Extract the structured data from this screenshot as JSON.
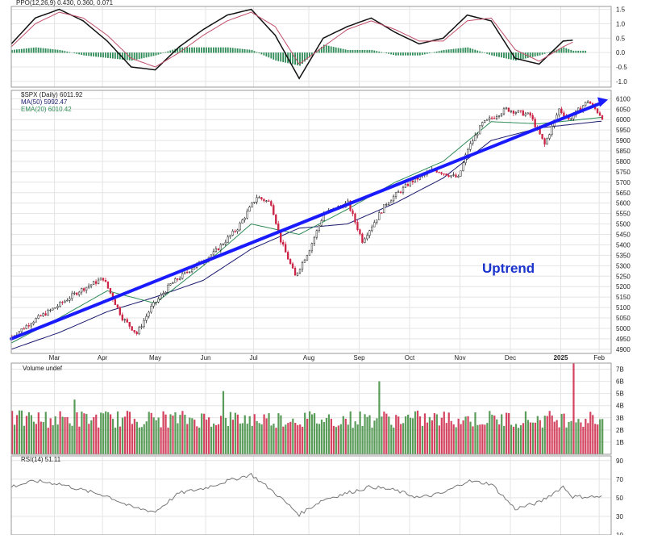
{
  "colors": {
    "up": "#3d8b3d",
    "down": "#cc2244",
    "trend": "#1a1aff",
    "ma50": "#1a1a6e",
    "ema20": "#2e8b57",
    "grid": "#e4e4e4",
    "annotation": "#1a33cc"
  },
  "chart_data": [
    {
      "type": "line",
      "legend": "PPO(12,26,9) 0.430, 0.360, 0.071",
      "ylim": [
        -1.2,
        1.6
      ],
      "yticks": [
        "1.5",
        "1.0",
        "0.5",
        "0.0",
        "-0.5",
        "-1.0"
      ],
      "yticks_values": [
        1.5,
        1.0,
        0.5,
        0.0,
        -0.5,
        -1.0
      ],
      "series": [
        {
          "name": "PPO",
          "x": [
            0,
            10,
            20,
            30,
            40,
            50,
            60,
            70,
            80,
            90,
            100,
            110,
            120,
            130,
            140,
            150,
            160,
            170,
            180,
            190,
            200,
            210,
            220,
            230,
            234
          ],
          "values": [
            0.3,
            1.2,
            1.5,
            1.1,
            0.4,
            -0.5,
            -0.6,
            0.2,
            0.8,
            1.3,
            1.5,
            0.6,
            -0.9,
            0.5,
            0.9,
            1.2,
            0.7,
            0.3,
            0.5,
            1.3,
            1.1,
            -0.2,
            -0.4,
            0.4,
            0.43
          ]
        },
        {
          "name": "Signal",
          "x": [
            0,
            10,
            20,
            30,
            40,
            50,
            60,
            70,
            80,
            90,
            100,
            110,
            120,
            130,
            140,
            150,
            160,
            170,
            180,
            190,
            200,
            210,
            220,
            230,
            234
          ],
          "values": [
            0.2,
            1.0,
            1.4,
            1.2,
            0.6,
            -0.2,
            -0.5,
            0.0,
            0.6,
            1.1,
            1.4,
            0.9,
            -0.4,
            0.2,
            0.8,
            1.1,
            0.8,
            0.4,
            0.4,
            1.1,
            1.2,
            0.1,
            -0.3,
            0.2,
            0.36
          ]
        }
      ]
    },
    {
      "type": "candlestick",
      "legend": [
        "$SPX (Daily) 6011.92",
        "MA(50) 5992.47",
        "EMA(20) 6010.42"
      ],
      "ylim": [
        4880,
        6140
      ],
      "yticks": [
        "6100",
        "6050",
        "6000",
        "5950",
        "5900",
        "5850",
        "5800",
        "5750",
        "5700",
        "5650",
        "5600",
        "5550",
        "5500",
        "5450",
        "5400",
        "5350",
        "5300",
        "5250",
        "5200",
        "5150",
        "5100",
        "5050",
        "5000",
        "4950",
        "4900"
      ],
      "yticks_values": [
        6100,
        6050,
        6000,
        5950,
        5900,
        5850,
        5800,
        5750,
        5700,
        5650,
        5600,
        5550,
        5500,
        5450,
        5400,
        5350,
        5300,
        5250,
        5200,
        5150,
        5100,
        5050,
        5000,
        4950,
        4900
      ],
      "months": [
        "Mar",
        "Apr",
        "May",
        "Jun",
        "Jul",
        "Aug",
        "Sep",
        "Oct",
        "Nov",
        "Dec",
        "2025",
        "Feb"
      ],
      "months_x": [
        18,
        38,
        60,
        81,
        101,
        124,
        145,
        166,
        187,
        208,
        229,
        245
      ],
      "price_x": [
        0,
        8,
        18,
        28,
        38,
        46,
        52,
        58,
        66,
        74,
        84,
        94,
        102,
        108,
        112,
        118,
        124,
        130,
        140,
        146,
        156,
        166,
        176,
        186,
        190,
        196,
        206,
        216,
        222,
        228,
        232,
        240,
        246
      ],
      "price": [
        4960,
        5030,
        5100,
        5180,
        5240,
        5050,
        4975,
        5100,
        5210,
        5280,
        5360,
        5480,
        5630,
        5600,
        5420,
        5250,
        5380,
        5550,
        5600,
        5420,
        5600,
        5700,
        5760,
        5720,
        5860,
        5980,
        6050,
        6020,
        5880,
        6050,
        6000,
        6090,
        6011.92
      ],
      "trendline": {
        "x": [
          0,
          246
        ],
        "values": [
          4950,
          6080
        ]
      },
      "ma50": {
        "x": [
          0,
          20,
          40,
          60,
          80,
          100,
          120,
          140,
          160,
          180,
          200,
          220,
          246
        ],
        "values": [
          4900,
          4980,
          5080,
          5150,
          5230,
          5380,
          5480,
          5500,
          5600,
          5720,
          5900,
          5960,
          5992.47
        ]
      },
      "ema20": {
        "x": [
          0,
          20,
          40,
          60,
          80,
          100,
          120,
          140,
          160,
          180,
          200,
          220,
          246
        ],
        "values": [
          4930,
          5050,
          5180,
          5120,
          5300,
          5500,
          5450,
          5570,
          5700,
          5800,
          5990,
          5980,
          6010.42
        ]
      },
      "annotation": "Uptrend"
    },
    {
      "type": "bar",
      "legend": "Volume undef",
      "ylim": [
        0,
        7.5
      ],
      "yticks": [
        "7B",
        "6B",
        "5B",
        "4B",
        "3B",
        "2B",
        "1B"
      ],
      "yticks_values": [
        7,
        6,
        5,
        4,
        3,
        2,
        1
      ],
      "spikes": {
        "x": [
          26,
          88,
          153,
          234
        ],
        "values": [
          4.5,
          5.2,
          6.0,
          7.5
        ]
      },
      "base_level": 2.9
    },
    {
      "type": "line",
      "legend": "RSI(14) 51.11",
      "ylim": [
        10,
        95
      ],
      "yticks": [
        "90",
        "70",
        "50",
        "30",
        "10"
      ],
      "yticks_values": [
        90,
        70,
        50,
        30,
        10
      ],
      "x": [
        0,
        10,
        20,
        30,
        40,
        50,
        60,
        70,
        80,
        90,
        100,
        110,
        120,
        130,
        140,
        150,
        160,
        170,
        180,
        190,
        200,
        210,
        220,
        230,
        234
      ],
      "values": [
        62,
        68,
        65,
        58,
        52,
        40,
        35,
        55,
        60,
        68,
        75,
        55,
        32,
        48,
        55,
        62,
        58,
        50,
        55,
        68,
        65,
        38,
        45,
        62,
        51.11
      ]
    }
  ]
}
